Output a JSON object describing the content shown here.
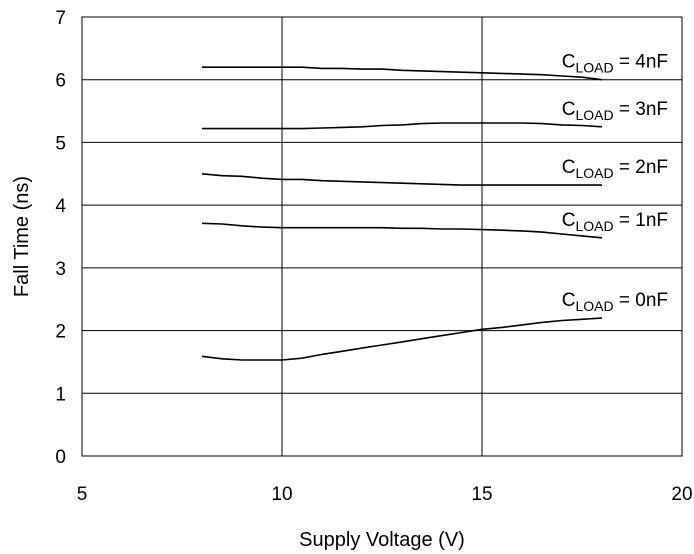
{
  "chart_data": {
    "type": "line",
    "title": "",
    "xlabel": "Supply Voltage (V)",
    "ylabel": "Fall Time (ns)",
    "xlim": [
      5,
      20
    ],
    "ylim": [
      0,
      7
    ],
    "xticks": [
      5,
      10,
      15,
      20
    ],
    "yticks": [
      0,
      1,
      2,
      3,
      4,
      5,
      6,
      7
    ],
    "grid": true,
    "legend": "inline labels",
    "x": [
      8,
      8.5,
      9,
      9.5,
      10,
      10.5,
      11,
      11.5,
      12,
      12.5,
      13,
      13.5,
      14,
      14.5,
      15,
      15.5,
      16,
      16.5,
      17,
      17.5,
      18
    ],
    "series": [
      {
        "name": "C_LOAD = 4nF",
        "label": {
          "main": "C",
          "sub": "LOAD",
          "rest": " = 4nF"
        },
        "values": [
          6.2,
          6.2,
          6.2,
          6.2,
          6.2,
          6.2,
          6.18,
          6.18,
          6.17,
          6.17,
          6.15,
          6.14,
          6.13,
          6.12,
          6.11,
          6.1,
          6.09,
          6.08,
          6.06,
          6.04,
          6.0
        ]
      },
      {
        "name": "C_LOAD = 3nF",
        "label": {
          "main": "C",
          "sub": "LOAD",
          "rest": " = 3nF"
        },
        "values": [
          5.22,
          5.22,
          5.22,
          5.22,
          5.22,
          5.22,
          5.23,
          5.24,
          5.25,
          5.27,
          5.28,
          5.3,
          5.31,
          5.31,
          5.31,
          5.31,
          5.31,
          5.3,
          5.28,
          5.27,
          5.25
        ]
      },
      {
        "name": "C_LOAD = 2nF",
        "label": {
          "main": "C",
          "sub": "LOAD",
          "rest": " = 2nF"
        },
        "values": [
          4.5,
          4.47,
          4.46,
          4.43,
          4.41,
          4.41,
          4.39,
          4.38,
          4.37,
          4.36,
          4.35,
          4.34,
          4.33,
          4.32,
          4.32,
          4.32,
          4.32,
          4.32,
          4.32,
          4.32,
          4.32
        ]
      },
      {
        "name": "C_LOAD = 1nF",
        "label": {
          "main": "C",
          "sub": "LOAD",
          "rest": " = 1nF"
        },
        "values": [
          3.71,
          3.7,
          3.67,
          3.65,
          3.64,
          3.64,
          3.64,
          3.64,
          3.64,
          3.64,
          3.63,
          3.63,
          3.62,
          3.62,
          3.61,
          3.6,
          3.59,
          3.57,
          3.54,
          3.51,
          3.48
        ]
      },
      {
        "name": "C_LOAD = 0nF",
        "label": {
          "main": "C",
          "sub": "LOAD",
          "rest": " = 0nF"
        },
        "values": [
          1.59,
          1.55,
          1.53,
          1.53,
          1.53,
          1.56,
          1.62,
          1.67,
          1.72,
          1.77,
          1.82,
          1.87,
          1.92,
          1.97,
          2.02,
          2.05,
          2.09,
          2.13,
          2.16,
          2.18,
          2.2
        ]
      }
    ]
  }
}
